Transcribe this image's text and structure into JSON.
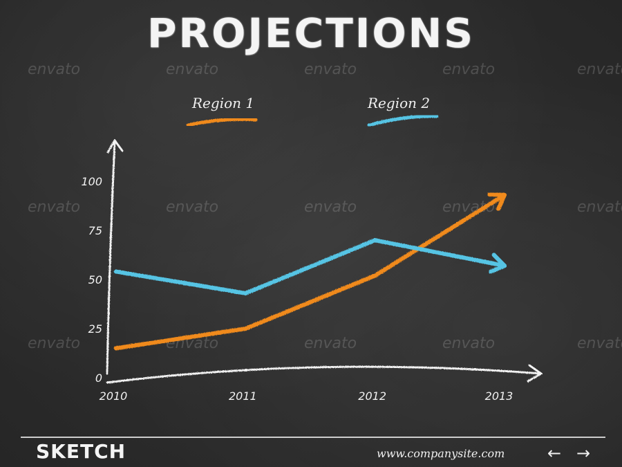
{
  "title": "PROJECTIONS",
  "watermark_text": "envato",
  "footer": {
    "brand": "SKETCH",
    "site": "www.companysite.com",
    "prev_icon": "arrow-left-icon",
    "next_icon": "arrow-right-icon"
  },
  "colors": {
    "background": "#2b2b2b",
    "chalk": "#f2f2f2",
    "region1": "#f08a1c",
    "region2": "#56c4e4"
  },
  "chart_data": {
    "type": "line",
    "title": "PROJECTIONS",
    "x": [
      "2010",
      "2011",
      "2012",
      "2013"
    ],
    "y_ticks": [
      0,
      25,
      50,
      75,
      100
    ],
    "ylim": [
      0,
      100
    ],
    "xlabel": "",
    "ylabel": "",
    "grid": false,
    "legend": "top",
    "series": [
      {
        "name": "Region 1",
        "color": "#f08a1c",
        "values": [
          15,
          25,
          52,
          93
        ]
      },
      {
        "name": "Region 2",
        "color": "#56c4e4",
        "values": [
          54,
          43,
          70,
          57
        ]
      }
    ]
  }
}
